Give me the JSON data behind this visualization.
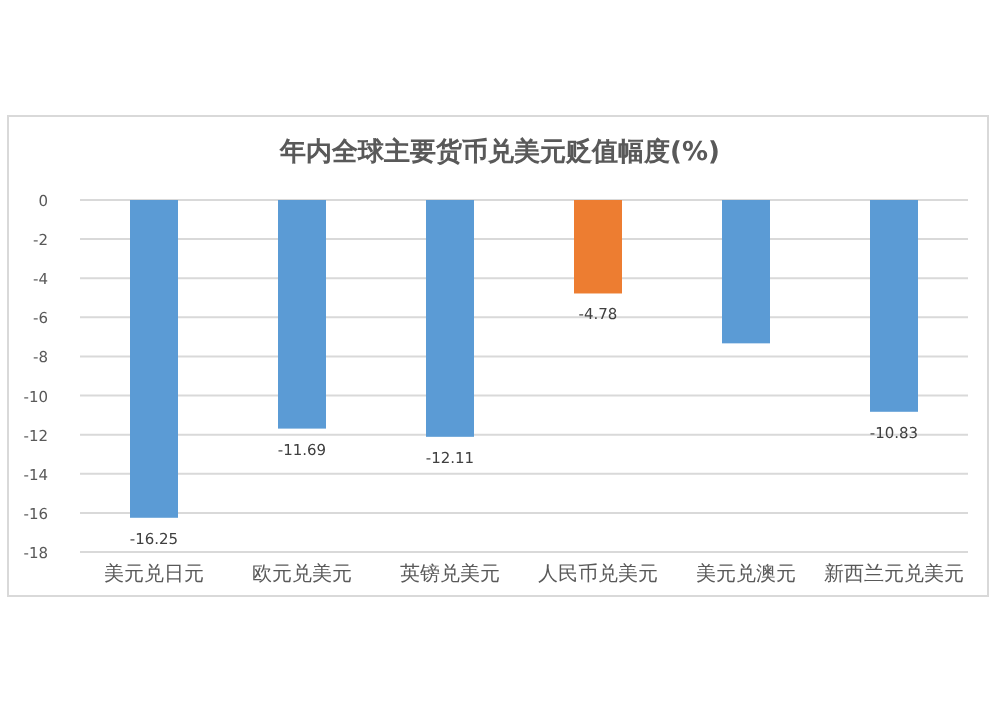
{
  "chart_data": {
    "type": "bar",
    "title": "年内全球主要货币兑美元贬值幅度(%)",
    "categories": [
      "美元兑日元",
      "欧元兑美元",
      "英镑兑美元",
      "人民币兑美元",
      "美元兑澳元",
      "新西兰元兑美元"
    ],
    "values": [
      -16.25,
      -11.69,
      -12.11,
      -4.78,
      -7.33,
      -10.83
    ],
    "colors": [
      "#5b9bd5",
      "#5b9bd5",
      "#5b9bd5",
      "#ed7d31",
      "#5b9bd5",
      "#5b9bd5"
    ],
    "value_labels": [
      "-16.25",
      "-11.69",
      "-12.11",
      "-4.78",
      null,
      "-10.83"
    ],
    "ylim": [
      -18,
      0
    ],
    "yticks": [
      0,
      -2,
      -4,
      -6,
      -8,
      -10,
      -12,
      -14,
      -16,
      -18
    ],
    "grid": "y"
  }
}
